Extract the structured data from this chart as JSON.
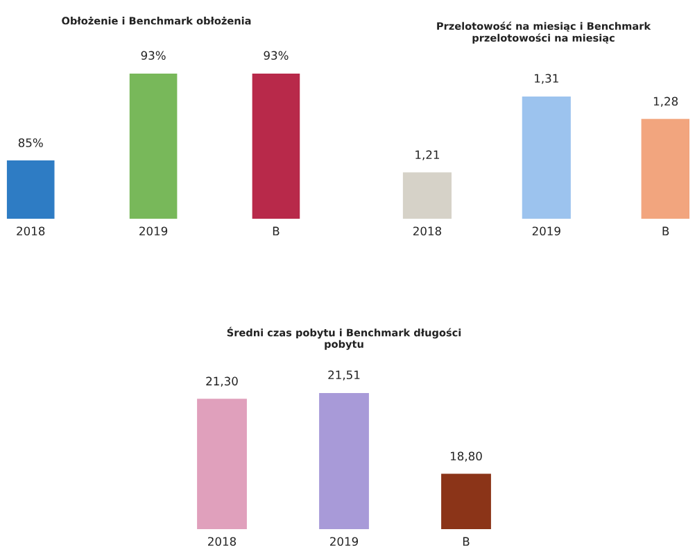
{
  "chart_data": [
    {
      "type": "bar",
      "title": "Obłożenie i Benchmark obłożenia",
      "categories": [
        "2018",
        "2019",
        "B"
      ],
      "values": [
        85,
        93,
        93
      ],
      "colors": [
        "#2e7cc4",
        "#78b85a",
        "#b8294a"
      ],
      "value_labels": [
        "85%",
        "93%",
        "93%"
      ],
      "ylim": [
        79.7,
        93
      ],
      "tick_labels": "x"
    },
    {
      "type": "bar",
      "title": "Przelotowość na miesiąc i Benchmark\nprzelotowości na miesiąc",
      "categories": [
        "2018",
        "2019",
        "B"
      ],
      "values": [
        1.21,
        1.31,
        1.28
      ],
      "colors": [
        "#d6d2c8",
        "#9cc3ee",
        "#f2a57e"
      ],
      "value_labels": [
        "1,21",
        "1,31",
        "1,28"
      ],
      "ylim": [
        1.15,
        1.31
      ],
      "tick_labels": "x"
    },
    {
      "type": "bar",
      "title": "Średni czas pobytu i Benchmark długości\npobytu",
      "categories": [
        "2018",
        "2019",
        "B"
      ],
      "values": [
        21.3,
        21.51,
        18.8
      ],
      "colors": [
        "#e0a0bc",
        "#a89ad8",
        "#8b3418"
      ],
      "value_labels": [
        "21,30",
        "21,51",
        "18,80"
      ],
      "ylim": [
        16.97,
        21.51
      ],
      "tick_labels": "x"
    }
  ]
}
